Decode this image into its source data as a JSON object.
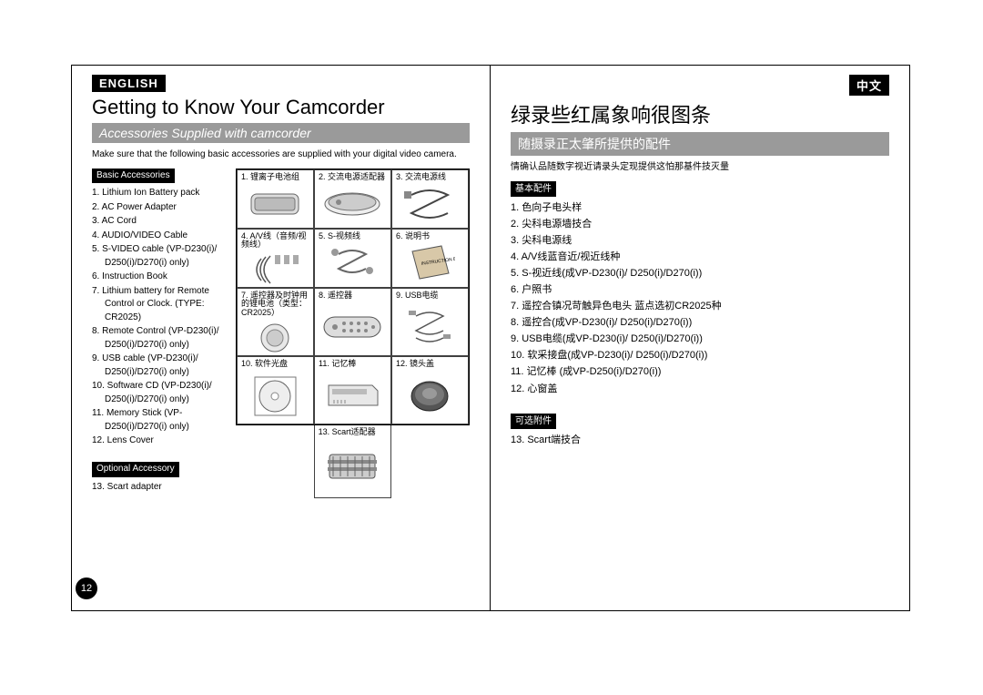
{
  "left": {
    "lang": "ENGLISH",
    "title": "Getting to Know Your Camcorder",
    "subtitle": "Accessories Supplied with camcorder",
    "intro": "Make sure that the following basic accessories are supplied with your digital video camera.",
    "basic_label": "Basic Accessories",
    "basic_items": [
      "1. Lithium Ion Battery pack",
      "2. AC Power Adapter",
      "3. AC Cord",
      "4. AUDIO/VIDEO Cable",
      "5. S-VIDEO cable (VP-D230(i)/ D250(i)/D270(i) only)",
      "6. Instruction Book",
      "7. Lithium battery for Remote Control or Clock. (TYPE: CR2025)",
      "8. Remote Control (VP-D230(i)/ D250(i)/D270(i) only)",
      "9. USB cable (VP-D230(i)/ D250(i)/D270(i) only)",
      "10. Software CD (VP-D230(i)/ D250(i)/D270(i) only)",
      "11. Memory Stick (VP-D250(i)/D270(i) only)",
      "12. Lens Cover"
    ],
    "optional_label": "Optional Accessory",
    "optional_items": [
      "13. Scart adapter"
    ],
    "grid": [
      "1. 锂离子电池组",
      "2. 交流电源适配器",
      "3. 交流电源线",
      "4. A/V线（音频/视频线）",
      "5. S-视频线",
      "6. 说明书",
      "7. 遥控器及时钟用的锂电池（类型：CR2025）",
      "8. 遥控器",
      "9. USB电缆",
      "10. 软件光盘",
      "11. 记忆棒",
      "12. 镜头盖"
    ],
    "grid13": "13. Scart适配器",
    "page_number": "12"
  },
  "right": {
    "lang": "中文",
    "title": "绿录些红属象响很图条",
    "subtitle": "随摄录正太肇所提供的配件",
    "intro": "情确认品随数字视近请录头定现提供这怕那基件技灭量",
    "basic_label": "基本配件",
    "basic_items": [
      "1. 色向子电头样",
      "2. 尖科电源墙技合",
      "3. 尖科电源线",
      "4. A/V线蓝音近/视近线种",
      "5. S-视近线(成VP-D230(i)/ D250(i)/D270(i))",
      "6. 户照书",
      "7. 遥控合镇况苛触异色电头 蓝点选初CR2025种",
      "8. 遥控合(成VP-D230(i)/ D250(i)/D270(i))",
      "9. USB电缆(成VP-D230(i)/ D250(i)/D270(i))",
      "10. 软采接盘(成VP-D230(i)/ D250(i)/D270(i))",
      "11. 记忆棒 (成VP-D250(i)/D270(i))",
      "12. 心窗盖"
    ],
    "optional_label": "可选附件",
    "optional_items": [
      "13. Scart端技合"
    ]
  }
}
